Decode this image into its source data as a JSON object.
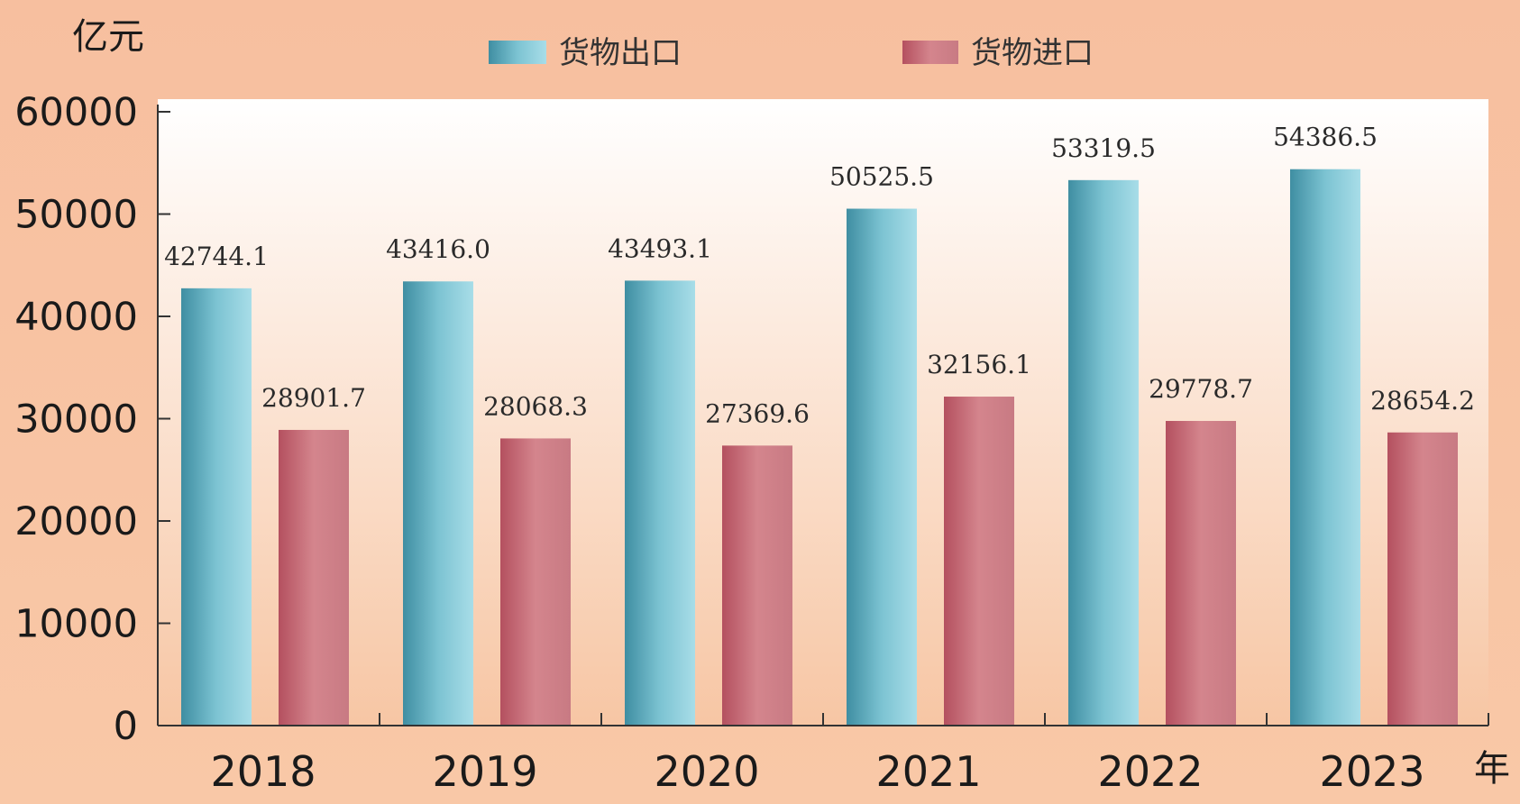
{
  "chart_data": {
    "type": "bar",
    "categories": [
      "2018",
      "2019",
      "2020",
      "2021",
      "2022",
      "2023"
    ],
    "series": [
      {
        "name": "货物出口",
        "values": [
          42744.1,
          43416.0,
          43493.1,
          50525.5,
          53319.5,
          54386.5
        ],
        "labels": [
          "42744.1",
          "43416.0",
          "43493.1",
          "50525.5",
          "53319.5",
          "54386.5"
        ],
        "color": "#5aaec0"
      },
      {
        "name": "货物进口",
        "values": [
          28901.7,
          28068.3,
          27369.6,
          32156.1,
          29778.7,
          28654.2
        ],
        "labels": [
          "28901.7",
          "28068.3",
          "27369.6",
          "32156.1",
          "29778.7",
          "28654.2"
        ],
        "color": "#c66a75"
      }
    ],
    "xlabel": "年",
    "ylabel": "亿元",
    "ylim": [
      0,
      60000
    ],
    "yticks": [
      0,
      10000,
      20000,
      30000,
      40000,
      50000,
      60000
    ],
    "ytick_labels": [
      "0",
      "10000",
      "20000",
      "30000",
      "40000",
      "50000",
      "60000"
    ],
    "legend_position": "top-center",
    "colors": {
      "background": "#f8c3a2",
      "plot_top": "#ffffff",
      "plot_bottom": "#f7c6a4",
      "export_bar": "#5aaec0",
      "import_bar": "#c66a75"
    }
  }
}
